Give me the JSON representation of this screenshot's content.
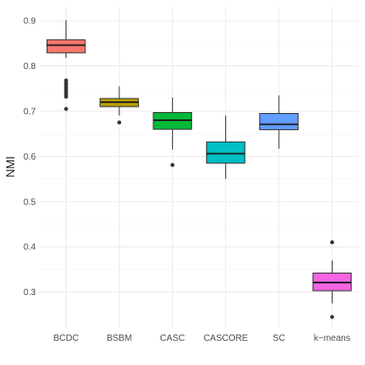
{
  "chart_data": {
    "type": "boxplot",
    "title": "",
    "xlabel": "",
    "ylabel": "NMI",
    "ylim": [
      0.22,
      0.93
    ],
    "yticks": [
      0.3,
      0.4,
      0.5,
      0.6,
      0.7,
      0.8,
      0.9
    ],
    "grid": true,
    "legend": "none",
    "categories": [
      "BCDC",
      "BSBM",
      "CASC",
      "CASCORE",
      "SC",
      "k−means"
    ],
    "series": [
      {
        "category": "BCDC",
        "color": "#F8766D",
        "whisker_low": 0.818,
        "q1": 0.829,
        "median": 0.846,
        "q3": 0.858,
        "whisker_high": 0.901,
        "outliers": [
          0.768,
          0.762,
          0.757,
          0.752,
          0.747,
          0.742,
          0.737,
          0.732,
          0.705
        ]
      },
      {
        "category": "BSBM",
        "color": "#B79F00",
        "whisker_low": 0.69,
        "q1": 0.71,
        "median": 0.72,
        "q3": 0.728,
        "whisker_high": 0.755,
        "outliers": [
          0.675
        ]
      },
      {
        "category": "CASC",
        "color": "#00BA38",
        "whisker_low": 0.615,
        "q1": 0.66,
        "median": 0.68,
        "q3": 0.697,
        "whisker_high": 0.73,
        "outliers": [
          0.581
        ]
      },
      {
        "category": "CASCORE",
        "color": "#00BFC4",
        "whisker_low": 0.55,
        "q1": 0.585,
        "median": 0.606,
        "q3": 0.632,
        "whisker_high": 0.69,
        "outliers": []
      },
      {
        "category": "SC",
        "color": "#619CFF",
        "whisker_low": 0.617,
        "q1": 0.659,
        "median": 0.671,
        "q3": 0.695,
        "whisker_high": 0.735,
        "outliers": []
      },
      {
        "category": "k−means",
        "color": "#F564E3",
        "whisker_low": 0.275,
        "q1": 0.303,
        "median": 0.321,
        "q3": 0.342,
        "whisker_high": 0.37,
        "outliers": [
          0.41,
          0.245
        ]
      }
    ]
  }
}
